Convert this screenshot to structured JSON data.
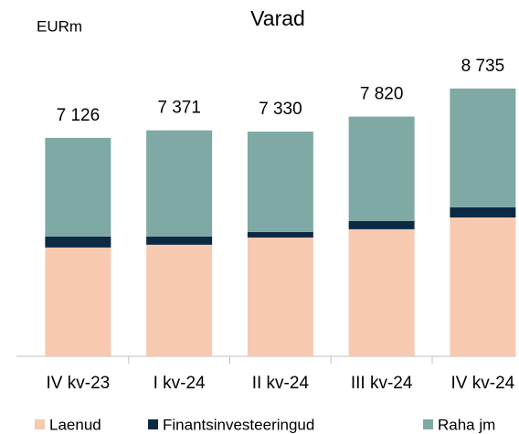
{
  "chart_data": {
    "type": "stacked_bar",
    "title": "Varad",
    "unit_label": "EURm",
    "categories": [
      "IV kv-23",
      "I kv-24",
      "II kv-24",
      "III kv-24",
      "IV kv-24"
    ],
    "series": [
      {
        "name": "Laenud",
        "color": "#f6c9b0",
        "values": [
          3550,
          3640,
          3875,
          4145,
          4530
        ]
      },
      {
        "name": "Finantsinvesteeringud",
        "color": "#0d2a45",
        "values": [
          360,
          270,
          180,
          270,
          330
        ]
      },
      {
        "name": "Raha jm",
        "color": "#7fa9a5",
        "values": [
          3216,
          3461,
          3275,
          3405,
          3875
        ]
      }
    ],
    "totals": [
      7126,
      7371,
      7330,
      7820,
      8735
    ],
    "total_labels": [
      "7 126",
      "7 371",
      "7 330",
      "7 820",
      "8 735"
    ],
    "ylim": [
      0,
      9000
    ],
    "legend": "bottom"
  }
}
